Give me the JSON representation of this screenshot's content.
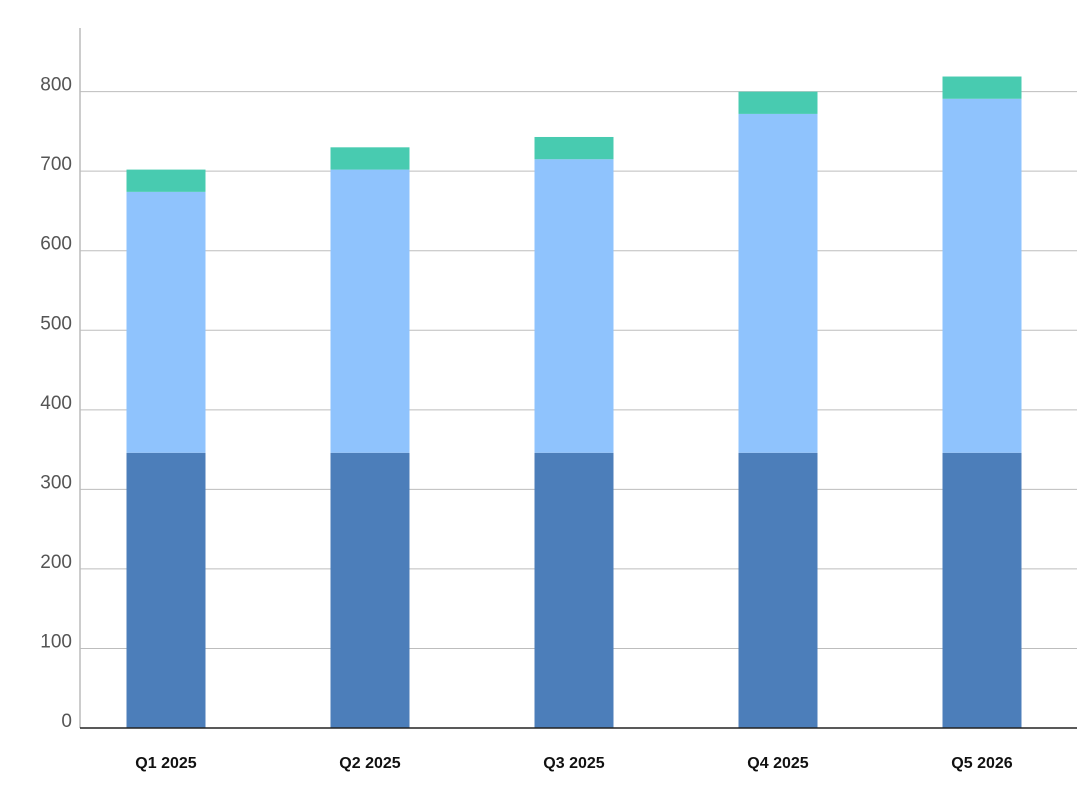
{
  "chart_data": {
    "type": "bar",
    "stacked": true,
    "categories": [
      "Q1 2025",
      "Q2 2025",
      "Q3 2025",
      "Q4 2025",
      "Q5 2026"
    ],
    "series": [
      {
        "color": "#4c7eba",
        "values": [
          346,
          346,
          346,
          346,
          346
        ]
      },
      {
        "color": "#8fc3fd",
        "values": [
          328,
          356,
          369,
          426,
          445
        ]
      },
      {
        "color": "#48cbb0",
        "values": [
          28,
          28,
          28,
          28,
          28
        ]
      }
    ],
    "ylim": [
      0,
      880
    ],
    "yticks": [
      0,
      100,
      200,
      300,
      400,
      500,
      600,
      700,
      800
    ],
    "grid": true
  }
}
